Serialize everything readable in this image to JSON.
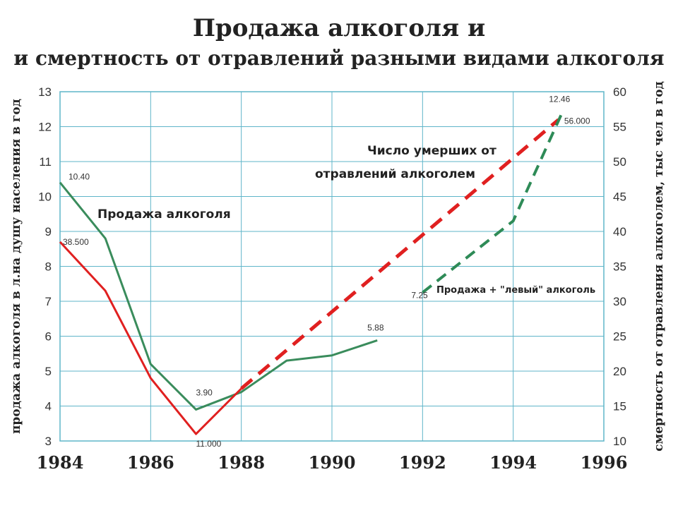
{
  "title": "Продажа алкоголя и",
  "subtitle": "и смертность от отравлений разными видами алкоголя",
  "chart_data": {
    "type": "line",
    "x_ticks": [
      "1984",
      "1986",
      "1988",
      "1990",
      "1992",
      "1994",
      "1996"
    ],
    "xlim": [
      1984,
      1996
    ],
    "y_left": {
      "label": "продажа алкоголя в л.на душу населения в год",
      "range": [
        3,
        13
      ],
      "ticks": [
        "3",
        "4",
        "5",
        "6",
        "7",
        "8",
        "9",
        "10",
        "11",
        "12",
        "13"
      ]
    },
    "y_right": {
      "label": "смертность от отравления алкоголем, тыс чел в год",
      "range": [
        10,
        60
      ],
      "ticks": [
        "10",
        "15",
        "20",
        "25",
        "30",
        "35",
        "40",
        "45",
        "50",
        "55",
        "60"
      ]
    },
    "grid": true,
    "series": [
      {
        "name": "Продажа алкоголя",
        "axis": "left",
        "color": "#3a8c5c",
        "style": "solid",
        "x": [
          1984,
          1985,
          1986,
          1987,
          1988,
          1989,
          1990,
          1991
        ],
        "y": [
          10.4,
          8.8,
          5.2,
          3.9,
          4.4,
          5.3,
          5.45,
          5.88
        ]
      },
      {
        "name": "Число умерших от отравлений алкоголем",
        "axis": "right",
        "color": "#e02020",
        "style": "dashed-after-1988",
        "x": [
          1984,
          1985,
          1986,
          1987,
          1988,
          1995
        ],
        "y": [
          38.5,
          31.5,
          19,
          11,
          17.5,
          56
        ]
      },
      {
        "name": "Продажа + \"левый\" алкоголь",
        "axis": "left",
        "color": "#2e8b57",
        "style": "dashed",
        "x": [
          1992,
          1994,
          1995.1
        ],
        "y": [
          7.25,
          9.3,
          12.46
        ]
      }
    ],
    "data_labels": [
      {
        "text": "10.40",
        "x": 1984,
        "y": 10.4,
        "axis": "left"
      },
      {
        "text": "38.500",
        "x": 1984,
        "y": 38.5,
        "axis": "right"
      },
      {
        "text": "3.90",
        "x": 1987,
        "y": 3.9,
        "axis": "left"
      },
      {
        "text": "11.000",
        "x": 1987,
        "y": 11,
        "axis": "right"
      },
      {
        "text": "5.88",
        "x": 1991,
        "y": 5.88,
        "axis": "left"
      },
      {
        "text": "7.25",
        "x": 1992,
        "y": 7.25,
        "axis": "left"
      },
      {
        "text": "12.46",
        "x": 1995.1,
        "y": 12.46,
        "axis": "left"
      },
      {
        "text": "56.000",
        "x": 1995,
        "y": 56,
        "axis": "right"
      }
    ],
    "annotations": [
      {
        "text": "Продажа алкоголя"
      },
      {
        "text": "Число умерших от"
      },
      {
        "text": "отравлений алкоголем"
      },
      {
        "text": "Продажа + \"левый\" алкоголь"
      }
    ]
  }
}
